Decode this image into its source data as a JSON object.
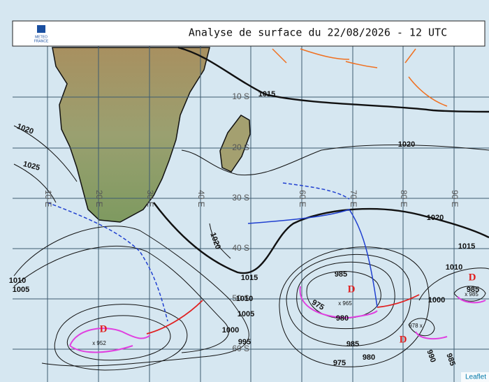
{
  "header": {
    "title": "Analyse de surface du 22/08/2026 - 12 UTC",
    "logo": [
      "METEO",
      "FRANCE"
    ]
  },
  "grid": {
    "longitudes": [
      "10 E",
      "20 E",
      "30 E",
      "40 E",
      "60 E",
      "70 E",
      "80 E",
      "90 E"
    ],
    "latitudes": [
      "10 S",
      "20 S",
      "30 S",
      "40 S",
      "50 S",
      "60 S"
    ]
  },
  "isobar_labels": [
    "1015",
    "1020",
    "1025",
    "1020",
    "1020",
    "1020",
    "1015",
    "1010",
    "1015",
    "1010",
    "1005",
    "1010",
    "1005",
    "1000",
    "995",
    "985",
    "975",
    "980",
    "985",
    "980",
    "975",
    "1000",
    "985",
    "990",
    "985"
  ],
  "lows": [
    "x 952",
    "x 965",
    "x 985",
    "978 x"
  ],
  "depressions": [
    "D",
    "D",
    "D",
    "D"
  ],
  "attribution": "Leaflet"
}
